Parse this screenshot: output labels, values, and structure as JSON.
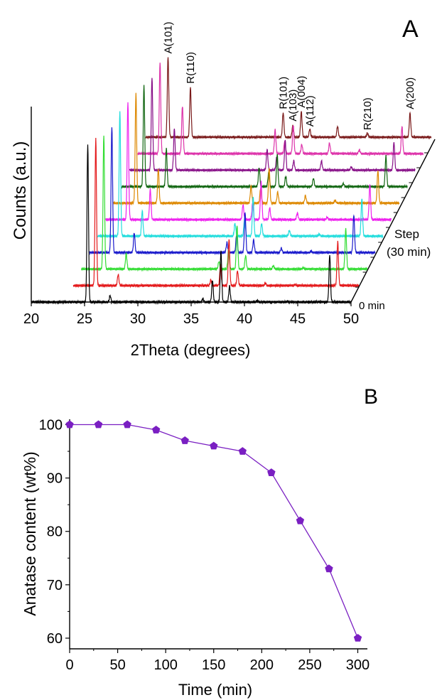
{
  "chart_data": [
    {
      "type": "line",
      "panel_label": "A",
      "xlabel": "2Theta (degrees)",
      "ylabel": "Counts (a.u.)",
      "x_ticks": [
        20,
        25,
        30,
        35,
        40,
        45,
        50
      ],
      "xlim": [
        20,
        50
      ],
      "stack_axis_labels": [
        "Step",
        "(30 min)"
      ],
      "stack_start_label": "0 min",
      "stack_step_minutes": 30,
      "series_colors": [
        "#000000",
        "#e41a1c",
        "#33dd33",
        "#1a1acc",
        "#22dddd",
        "#ee22ee",
        "#dd8800",
        "#116611",
        "#881188",
        "#dd33aa",
        "#7a1a1a"
      ],
      "anatase_peaks": [
        {
          "pos": 25.3,
          "height": 1.0
        },
        {
          "pos": 37.0,
          "height": 0.14
        },
        {
          "pos": 37.8,
          "height": 0.32
        },
        {
          "pos": 38.6,
          "height": 0.1
        },
        {
          "pos": 48.0,
          "height": 0.3
        }
      ],
      "rutile_peaks": [
        {
          "pos": 27.4,
          "height": 1.0
        },
        {
          "pos": 36.1,
          "height": 0.5
        },
        {
          "pos": 41.2,
          "height": 0.22
        },
        {
          "pos": 44.0,
          "height": 0.08
        }
      ],
      "peak_labels": [
        {
          "text": "A(101)",
          "series": 10,
          "pos": 25.3
        },
        {
          "text": "R(110)",
          "series": 10,
          "pos": 27.4
        },
        {
          "text": "R(101)",
          "series": 10,
          "pos": 36.1
        },
        {
          "text": "A(103)",
          "series": 10,
          "pos": 37.0
        },
        {
          "text": "A(004)",
          "series": 10,
          "pos": 37.8
        },
        {
          "text": "A(112)",
          "series": 10,
          "pos": 38.6
        },
        {
          "text": "R(210)",
          "series": 10,
          "pos": 44.0
        },
        {
          "text": "A(200)",
          "series": 10,
          "pos": 48.0
        }
      ]
    },
    {
      "type": "scatter",
      "panel_label": "B",
      "xlabel": "Time (min)",
      "ylabel": "Anatase content (wt%)",
      "xlim": [
        0,
        310
      ],
      "ylim": [
        58,
        101
      ],
      "x_ticks": [
        0,
        50,
        100,
        150,
        200,
        250,
        300
      ],
      "y_ticks": [
        60,
        70,
        80,
        90,
        100
      ],
      "marker": "pentagon",
      "color": "#7a1fc2",
      "x": [
        0,
        30,
        60,
        90,
        120,
        150,
        180,
        210,
        240,
        270,
        300
      ],
      "y": [
        100,
        100,
        100,
        99,
        97,
        96,
        95,
        91,
        82,
        73,
        60
      ]
    }
  ]
}
